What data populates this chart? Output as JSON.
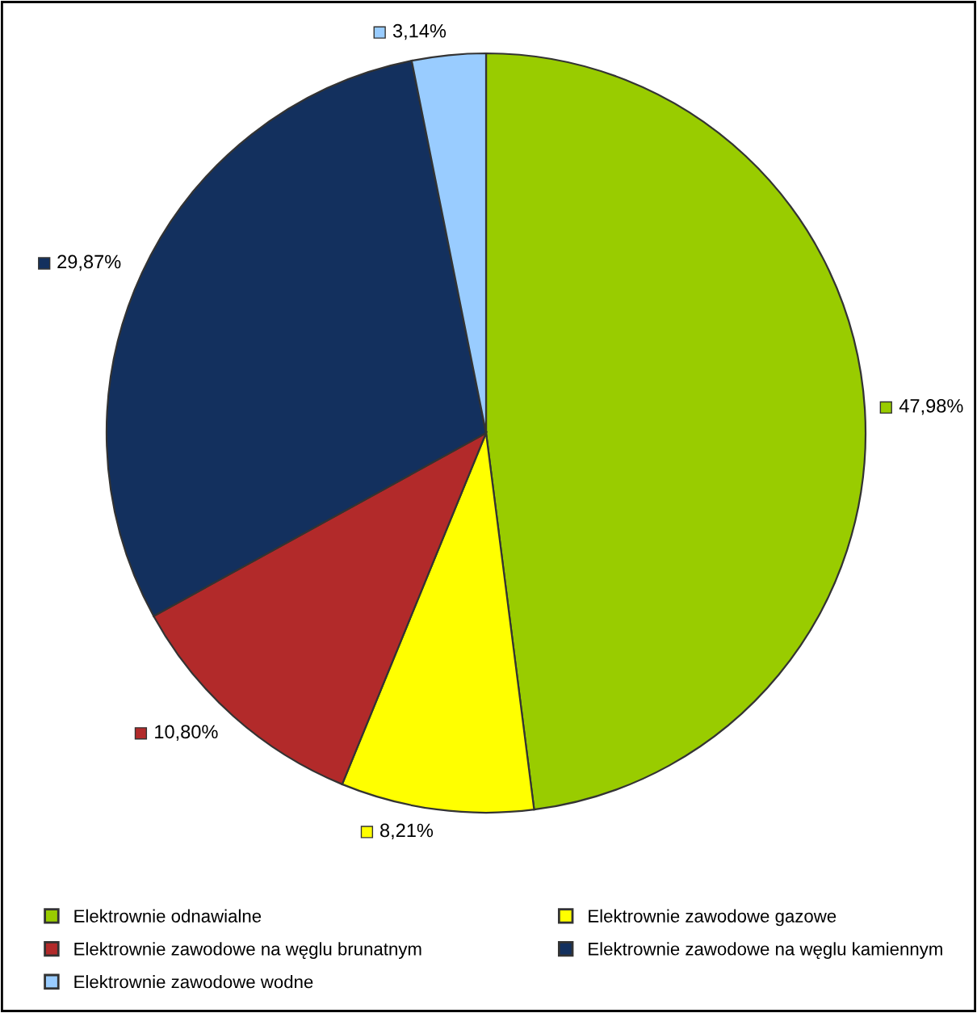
{
  "chart_data": {
    "type": "pie",
    "categories": [
      "Elektrownie odnawialne",
      "Elektrownie zawodowe gazowe",
      "Elektrownie zawodowe na węglu brunatnym",
      "Elektrownie zawodowe na węglu kamiennym",
      "Elektrownie zawodowe wodne"
    ],
    "values": [
      47.98,
      8.21,
      10.8,
      29.87,
      3.14
    ],
    "colors": [
      "#99cc00",
      "#ffff00",
      "#b22a2a",
      "#13305e",
      "#99ccff"
    ],
    "value_labels": [
      "47,98%",
      "8,21%",
      "10,80%",
      "29,87%",
      "3,14%"
    ],
    "legend": "bottom"
  }
}
